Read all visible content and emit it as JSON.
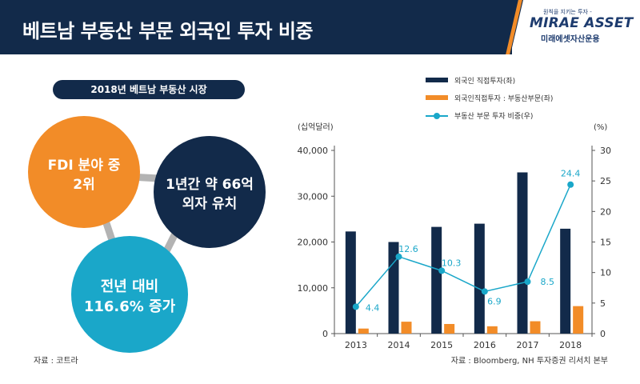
{
  "header": {
    "title": "베트남 부동산 부문 외국인 투자 비중",
    "logo_tagline": "원칙을 지키는 투자 -",
    "logo_main": "MIRAE ASSET",
    "logo_sub": "미래에셋자산운용"
  },
  "left_panel": {
    "pill_title": "2018년 베트남 부동산 시장",
    "bubbles": [
      {
        "line1": "FDI 분야 중",
        "line2": "2위",
        "color": "#f28c28"
      },
      {
        "line1": "1년간 약 66억",
        "line2": "외자 유치",
        "color": "#122a4a"
      },
      {
        "line1": "전년 대비",
        "line2": "116.6% 증가",
        "color": "#1aa7c9"
      }
    ],
    "connector_color": "#b3b3b3",
    "source": "자료 : 코트라"
  },
  "chart_data": {
    "type": "bar",
    "categories": [
      "2013",
      "2014",
      "2015",
      "2016",
      "2017",
      "2018"
    ],
    "series": [
      {
        "name": "외국인 직접투자(좌)",
        "kind": "bar",
        "axis": "left",
        "color": "#122a4a",
        "values": [
          22300,
          20000,
          23300,
          24000,
          35200,
          22900
        ]
      },
      {
        "name": "외국인직접투자 : 부동산부문(좌)",
        "kind": "bar",
        "axis": "left",
        "color": "#f28c28",
        "values": [
          1100,
          2600,
          2100,
          1600,
          2700,
          6000
        ]
      },
      {
        "name": "부동산 부문 투자 비중(우)",
        "kind": "line",
        "axis": "right",
        "color": "#1aa7c9",
        "values": [
          4.4,
          12.6,
          10.3,
          6.9,
          8.5,
          24.4
        ]
      }
    ],
    "ylabel_left": "(십억달러)",
    "ylabel_right": "(%)",
    "ylim_left": [
      0,
      40000
    ],
    "ylim_right": [
      0,
      30
    ],
    "yticks_left": [
      "0",
      "10,000",
      "20,000",
      "30,000",
      "40,000"
    ],
    "yticks_right": [
      "0",
      "5",
      "10",
      "15",
      "20",
      "25",
      "30"
    ],
    "grid": false,
    "legend_position": "top"
  },
  "source_right": "자료 : Bloomberg, NH 투자증권 리서치 본부"
}
